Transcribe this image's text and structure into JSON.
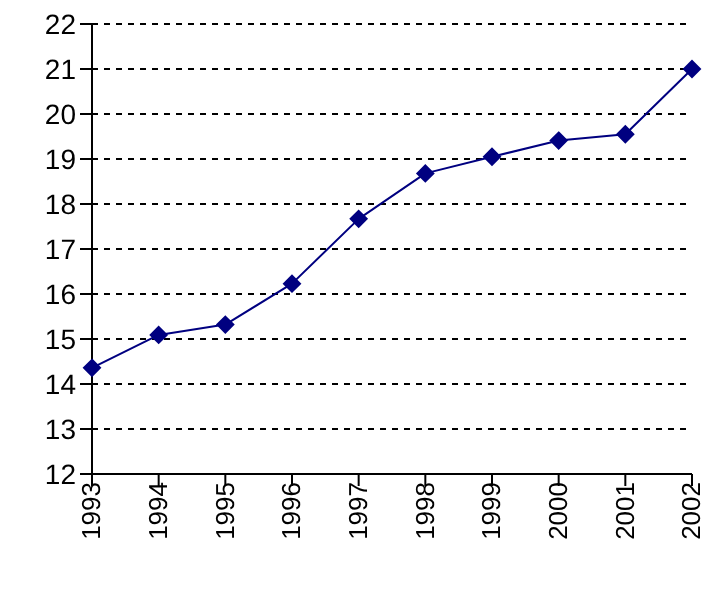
{
  "chart_data": {
    "type": "line",
    "categories": [
      "1993",
      "1994",
      "1995",
      "1996",
      "1997",
      "1998",
      "1999",
      "2000",
      "2001",
      "2002"
    ],
    "values": [
      14.36,
      15.09,
      15.32,
      16.23,
      17.67,
      18.68,
      19.05,
      19.41,
      19.55,
      21.0
    ],
    "color": "#000080",
    "ylim": [
      12,
      22
    ],
    "yticks": [
      12,
      13,
      14,
      15,
      16,
      17,
      18,
      19,
      20,
      21,
      22
    ],
    "grid": "y",
    "marker": "diamond",
    "line_style": "solid"
  }
}
